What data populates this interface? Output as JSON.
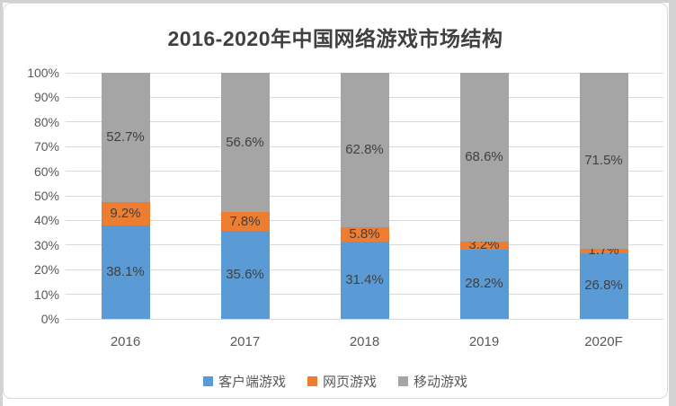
{
  "chart_data": {
    "type": "bar",
    "stacked": true,
    "title": "2016-2020年中国网络游戏市场结构",
    "categories": [
      "2016",
      "2017",
      "2018",
      "2019",
      "2020F"
    ],
    "series": [
      {
        "name": "客户端游戏",
        "color": "#5B9BD5",
        "values": [
          38.1,
          35.6,
          31.4,
          28.2,
          26.8
        ]
      },
      {
        "name": "网页游戏",
        "color": "#ED7D31",
        "values": [
          9.2,
          7.8,
          5.8,
          3.2,
          1.7
        ]
      },
      {
        "name": "移动游戏",
        "color": "#A5A5A5",
        "values": [
          52.7,
          56.6,
          62.8,
          68.6,
          71.5
        ]
      }
    ],
    "data_labels": [
      "38.1%",
      "35.6%",
      "31.4%",
      "28.2%",
      "26.8%",
      "9.2%",
      "7.8%",
      "5.8%",
      "3.2%",
      "1.7%",
      "52.7%",
      "56.6%",
      "62.8%",
      "68.6%",
      "71.5%"
    ],
    "data_label_format": "{value}%",
    "y_axis": {
      "min": 0,
      "max": 100,
      "ticks": [
        "0%",
        "10%",
        "20%",
        "30%",
        "40%",
        "50%",
        "60%",
        "70%",
        "80%",
        "90%",
        "100%"
      ]
    },
    "grid": true,
    "legend_position": "bottom"
  },
  "palette": {
    "title": "#404040",
    "axis_labels": "#595959",
    "data_labels": "#404040",
    "gridline": "#D9D9D9",
    "chart_border": "#D9D9D9",
    "page_edge": "#D2D2D2",
    "background": "#FFFFFF"
  }
}
